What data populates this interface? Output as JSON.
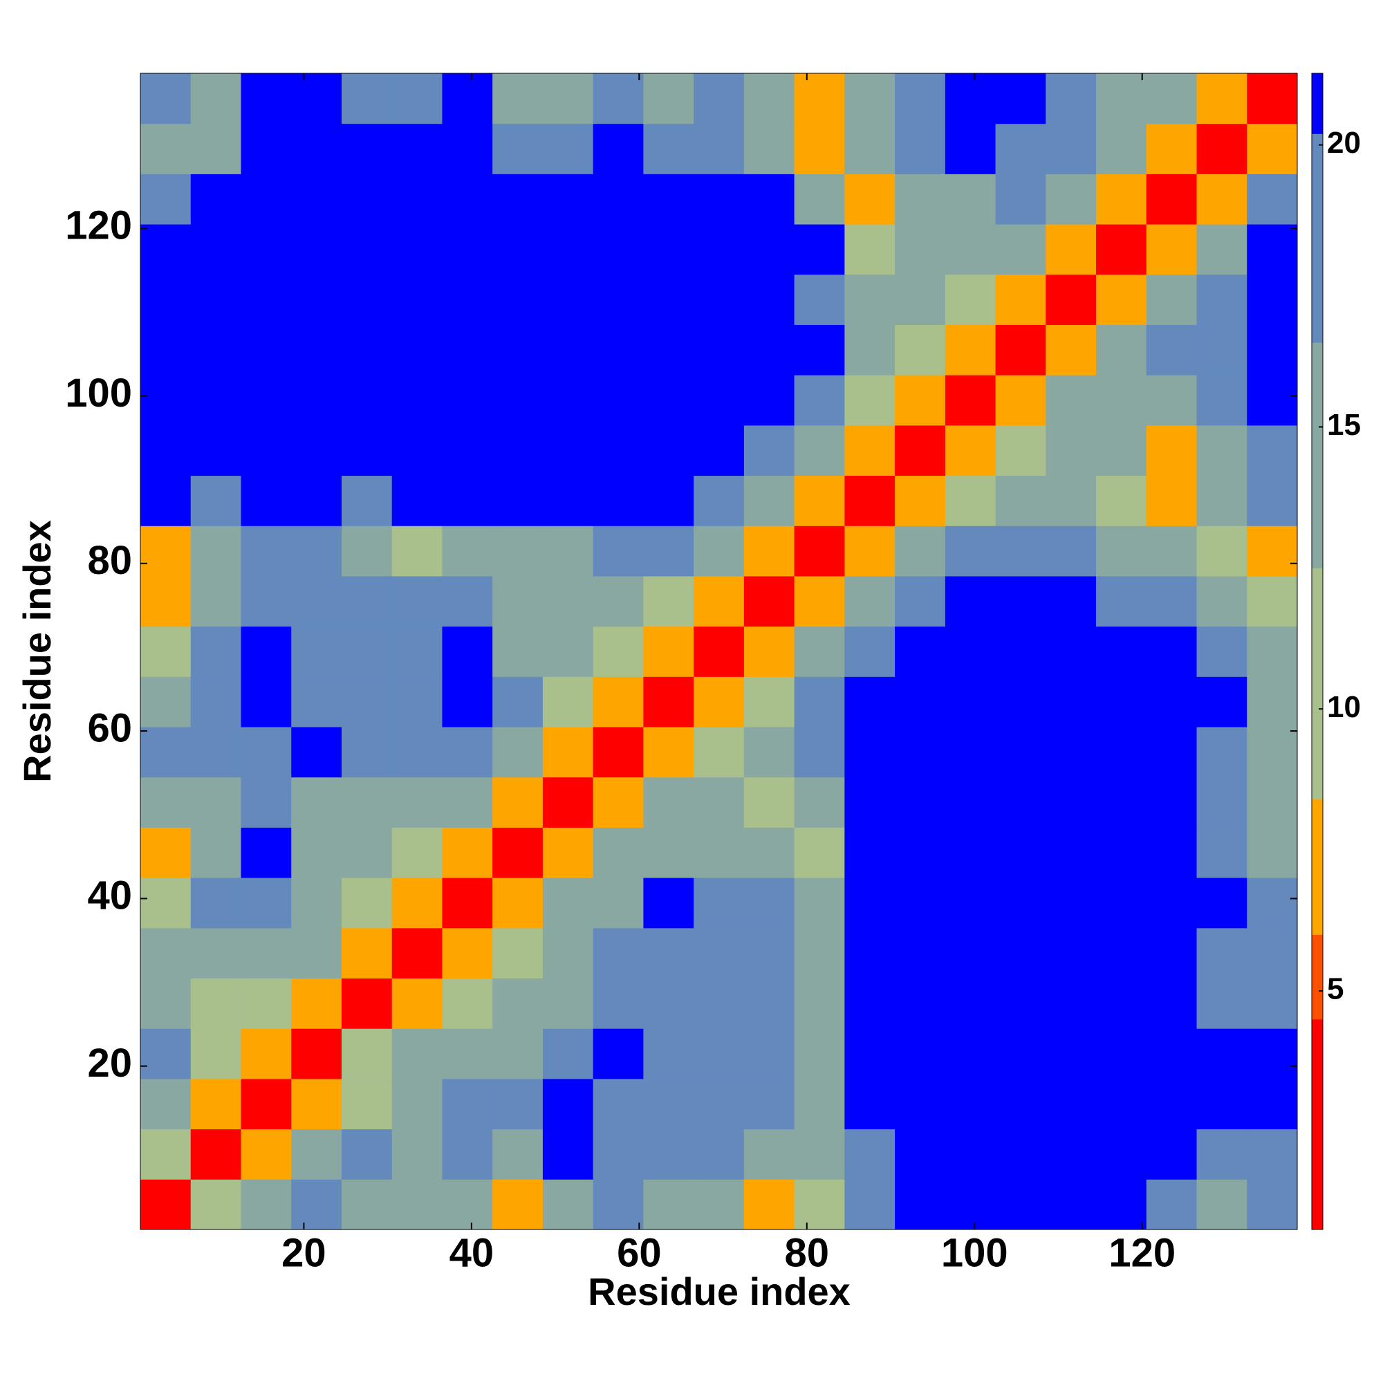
{
  "chart_data": {
    "type": "heatmap",
    "xlabel": "Residue index",
    "ylabel": "Residue index",
    "x": [
      3.5,
      9.5,
      15.5,
      21.5,
      27.5,
      33.5,
      39.5,
      45.5,
      51.5,
      57.5,
      63.5,
      69.5,
      75.5,
      81.5,
      87.5,
      93.5,
      99.5,
      105.5,
      111.5,
      117.5,
      123.5,
      129.5,
      135.5
    ],
    "y": [
      3.5,
      9.5,
      15.5,
      21.5,
      27.5,
      33.5,
      39.5,
      45.5,
      51.5,
      57.5,
      63.5,
      69.5,
      75.5,
      81.5,
      87.5,
      93.5,
      99.5,
      105.5,
      111.5,
      117.5,
      123.5,
      129.5,
      135.5
    ],
    "xlim": [
      0.5,
      138.5
    ],
    "ylim": [
      0.5,
      138.5
    ],
    "xticks": [
      20,
      40,
      60,
      80,
      100,
      120
    ],
    "yticks": [
      20,
      40,
      60,
      80,
      100,
      120
    ],
    "z": [
      [
        3,
        10,
        14,
        17,
        14,
        14,
        14,
        7,
        14,
        17,
        14,
        14,
        7,
        10,
        17,
        21,
        21,
        21,
        21,
        21,
        17,
        14,
        17
      ],
      [
        10,
        3,
        7,
        14,
        17,
        14,
        17,
        14,
        21,
        17,
        17,
        17,
        14,
        14,
        17,
        21,
        21,
        21,
        21,
        21,
        21,
        17,
        17
      ],
      [
        14,
        7,
        3,
        7,
        10,
        14,
        17,
        17,
        21,
        17,
        17,
        17,
        17,
        14,
        21,
        21,
        21,
        21,
        21,
        21,
        21,
        21,
        21
      ],
      [
        17,
        10,
        7,
        3,
        10,
        14,
        14,
        14,
        17,
        21,
        17,
        17,
        17,
        14,
        21,
        21,
        21,
        21,
        21,
        21,
        21,
        21,
        21
      ],
      [
        14,
        10,
        10,
        7,
        3,
        7,
        10,
        14,
        14,
        17,
        17,
        17,
        17,
        14,
        21,
        21,
        21,
        21,
        21,
        21,
        21,
        17,
        17
      ],
      [
        14,
        14,
        14,
        14,
        7,
        3,
        7,
        10,
        14,
        17,
        17,
        17,
        17,
        14,
        21,
        21,
        21,
        21,
        21,
        21,
        21,
        17,
        17
      ],
      [
        10,
        17,
        17,
        14,
        10,
        7,
        3,
        7,
        14,
        14,
        21,
        17,
        17,
        14,
        21,
        21,
        21,
        21,
        21,
        21,
        21,
        21,
        17
      ],
      [
        7,
        14,
        21,
        14,
        14,
        10,
        7,
        3,
        7,
        14,
        14,
        14,
        14,
        10,
        21,
        21,
        21,
        21,
        21,
        21,
        21,
        17,
        14
      ],
      [
        14,
        14,
        17,
        14,
        14,
        14,
        14,
        7,
        3,
        7,
        14,
        14,
        10,
        14,
        21,
        21,
        21,
        21,
        21,
        21,
        21,
        17,
        14
      ],
      [
        17,
        17,
        17,
        21,
        17,
        17,
        17,
        14,
        7,
        3,
        7,
        10,
        14,
        17,
        21,
        21,
        21,
        21,
        21,
        21,
        21,
        17,
        14
      ],
      [
        14,
        17,
        21,
        17,
        17,
        17,
        21,
        17,
        10,
        7,
        3,
        7,
        10,
        17,
        21,
        21,
        21,
        21,
        21,
        21,
        21,
        21,
        14
      ],
      [
        10,
        17,
        21,
        17,
        17,
        17,
        21,
        14,
        14,
        10,
        7,
        3,
        7,
        14,
        17,
        21,
        21,
        21,
        21,
        21,
        21,
        17,
        14
      ],
      [
        7,
        14,
        17,
        17,
        17,
        17,
        17,
        14,
        14,
        14,
        10,
        7,
        3,
        7,
        14,
        17,
        21,
        21,
        21,
        17,
        17,
        14,
        10
      ],
      [
        7,
        14,
        17,
        17,
        14,
        10,
        14,
        14,
        14,
        17,
        17,
        14,
        7,
        3,
        7,
        14,
        17,
        17,
        17,
        14,
        14,
        10,
        7
      ],
      [
        21,
        17,
        21,
        21,
        17,
        21,
        21,
        21,
        21,
        21,
        21,
        17,
        14,
        7,
        3,
        7,
        10,
        14,
        14,
        10,
        7,
        14,
        17
      ],
      [
        21,
        21,
        21,
        21,
        21,
        21,
        21,
        21,
        21,
        21,
        21,
        21,
        17,
        14,
        7,
        3,
        7,
        10,
        14,
        14,
        7,
        14,
        17
      ],
      [
        21,
        21,
        21,
        21,
        21,
        21,
        21,
        21,
        21,
        21,
        21,
        21,
        21,
        17,
        10,
        7,
        3,
        7,
        14,
        14,
        14,
        17,
        21
      ],
      [
        21,
        21,
        21,
        21,
        21,
        21,
        21,
        21,
        21,
        21,
        21,
        21,
        21,
        21,
        14,
        10,
        7,
        3,
        7,
        14,
        17,
        17,
        21
      ],
      [
        21,
        21,
        21,
        21,
        21,
        21,
        21,
        21,
        21,
        21,
        21,
        21,
        21,
        17,
        14,
        14,
        10,
        7,
        3,
        7,
        14,
        17,
        21
      ],
      [
        21,
        21,
        21,
        21,
        21,
        21,
        21,
        21,
        21,
        21,
        21,
        21,
        21,
        21,
        10,
        14,
        14,
        14,
        7,
        3,
        7,
        14,
        21
      ],
      [
        17,
        21,
        21,
        21,
        21,
        21,
        21,
        21,
        21,
        21,
        21,
        21,
        21,
        14,
        7,
        14,
        14,
        17,
        14,
        7,
        3,
        7,
        17
      ],
      [
        14,
        14,
        21,
        21,
        21,
        21,
        21,
        17,
        17,
        21,
        17,
        17,
        14,
        7,
        14,
        17,
        21,
        17,
        17,
        14,
        7,
        3,
        7
      ],
      [
        17,
        14,
        21,
        21,
        17,
        17,
        21,
        14,
        14,
        17,
        14,
        17,
        14,
        7,
        14,
        17,
        21,
        21,
        17,
        14,
        14,
        7,
        3
      ]
    ],
    "colorbar": {
      "zlim": [
        0.77,
        21.27
      ],
      "ticks": [
        5,
        10,
        15,
        20
      ],
      "bands": [
        {
          "max": 4.5,
          "color": "#ff0000"
        },
        {
          "max": 6,
          "color": "#ff5000"
        },
        {
          "max": 8.4,
          "color": "#ffa500"
        },
        {
          "max": 12.5,
          "color": "#a9bf8c"
        },
        {
          "max": 16.5,
          "color": "#8aa8a2"
        },
        {
          "max": 20.2,
          "color": "#6389bd"
        },
        {
          "max": 21.27,
          "color": "#0000ff"
        }
      ]
    }
  }
}
